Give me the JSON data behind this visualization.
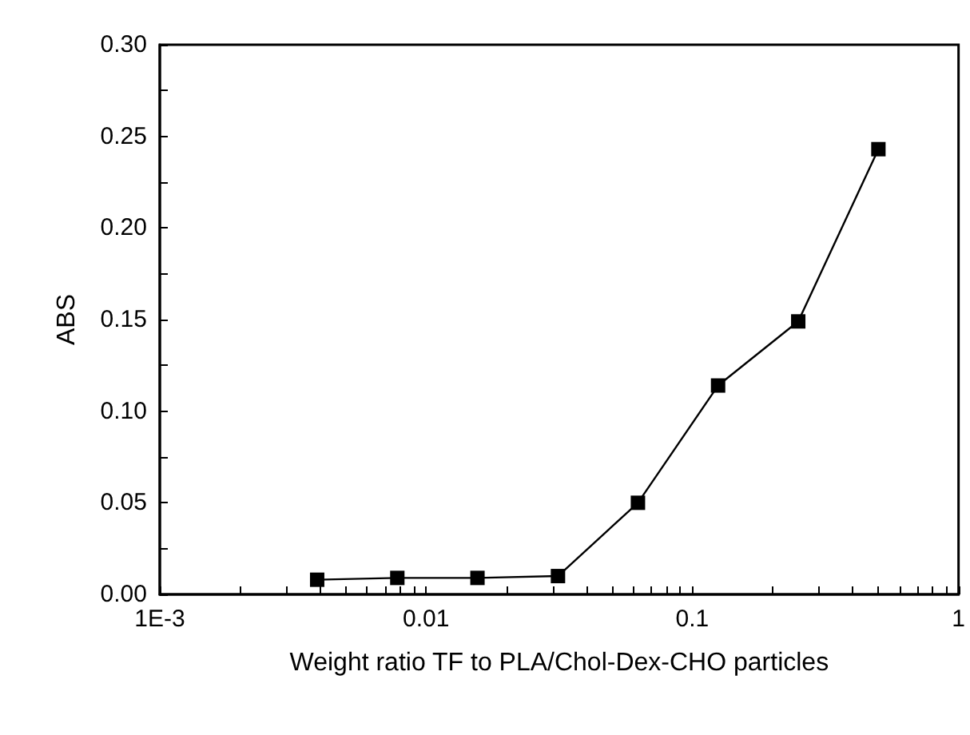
{
  "chart_data": {
    "type": "line",
    "xlabel": "Weight ratio TF to PLA/Chol-Dex-CHO particles",
    "ylabel": "ABS",
    "x": [
      0.0039,
      0.0078,
      0.0156,
      0.0313,
      0.0625,
      0.125,
      0.25,
      0.5
    ],
    "series": [
      {
        "color": "#000000",
        "values": [
          0.008,
          0.009,
          0.009,
          0.01,
          0.05,
          0.114,
          0.149,
          0.243
        ]
      }
    ],
    "log": "x",
    "marker": "square",
    "line_style": "solid",
    "grid": false,
    "xlim": [
      0.001,
      1
    ],
    "xticks": [
      {
        "value": 0.001,
        "label": "1E-3"
      },
      {
        "value": 0.002,
        "label": null
      },
      {
        "value": 0.003,
        "label": null
      },
      {
        "value": 0.004,
        "label": null
      },
      {
        "value": 0.005,
        "label": null
      },
      {
        "value": 0.006,
        "label": null
      },
      {
        "value": 0.007,
        "label": null
      },
      {
        "value": 0.008,
        "label": null
      },
      {
        "value": 0.009,
        "label": null
      },
      0.01,
      {
        "value": 0.02,
        "label": null
      },
      {
        "value": 0.03,
        "label": null
      },
      {
        "value": 0.04,
        "label": null
      },
      {
        "value": 0.05,
        "label": null
      },
      {
        "value": 0.06,
        "label": null
      },
      {
        "value": 0.07,
        "label": null
      },
      {
        "value": 0.08,
        "label": null
      },
      {
        "value": 0.09,
        "label": null
      },
      0.1,
      {
        "value": 0.2,
        "label": null
      },
      {
        "value": 0.3,
        "label": null
      },
      {
        "value": 0.4,
        "label": null
      },
      {
        "value": 0.5,
        "label": null
      },
      {
        "value": 0.6,
        "label": null
      },
      {
        "value": 0.7,
        "label": null
      },
      {
        "value": 0.8,
        "label": null
      },
      {
        "value": 0.9,
        "label": null
      },
      1
    ],
    "ylim": [
      0,
      0.3
    ],
    "yticks": [
      {
        "value": 0,
        "label": "0.00"
      },
      {
        "value": 0.025,
        "label": null
      },
      0.05,
      {
        "value": 0.075,
        "label": null
      },
      {
        "value": 0.1,
        "label": "0.10"
      },
      {
        "value": 0.125,
        "label": null
      },
      0.15,
      {
        "value": 0.175,
        "label": null
      },
      {
        "value": 0.2,
        "label": "0.20"
      },
      {
        "value": 0.225,
        "label": null
      },
      0.25,
      {
        "value": 0.275,
        "label": null
      },
      {
        "value": 0.3,
        "label": "0.30"
      }
    ]
  }
}
